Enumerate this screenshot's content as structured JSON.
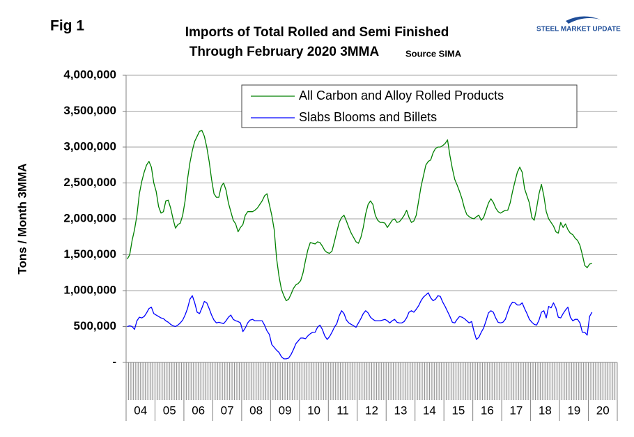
{
  "figure_label": "Fig 1",
  "logo": "STEEL MARKET UPDATE",
  "chart_data": {
    "type": "line",
    "title": [
      "Imports of Total Rolled and Semi Finished",
      "Through February 2020 3MMA"
    ],
    "source": "Source SIMA",
    "y_label": "Tons / Month 3MMA",
    "year_labels": [
      "04",
      "05",
      "06",
      "07",
      "08",
      "09",
      "10",
      "11",
      "12",
      "13",
      "14",
      "15",
      "16",
      "17",
      "18",
      "19",
      "20"
    ],
    "ylim": [
      0,
      4000000
    ],
    "yticks": [
      {
        "value": 0,
        "label": "-"
      },
      {
        "value": 500000,
        "label": "500,000"
      },
      {
        "value": 1000000,
        "label": "1,000,000"
      },
      {
        "value": 1500000,
        "label": "1,500,000"
      },
      {
        "value": 2000000,
        "label": "2,000,000"
      },
      {
        "value": 2500000,
        "label": "2,500,000"
      },
      {
        "value": 3000000,
        "label": "3,000,000"
      },
      {
        "value": 3500000,
        "label": "3,500,000"
      },
      {
        "value": 4000000,
        "label": "4,000,000"
      }
    ],
    "grid": true,
    "series": [
      {
        "name": "All Carbon and Alloy Rolled Products",
        "color": "#008000",
        "values": [
          1440000,
          1500000,
          1700000,
          1850000,
          2050000,
          2350000,
          2520000,
          2650000,
          2750000,
          2800000,
          2720000,
          2500000,
          2380000,
          2170000,
          2080000,
          2100000,
          2250000,
          2260000,
          2150000,
          2000000,
          1870000,
          1920000,
          1940000,
          2050000,
          2250000,
          2550000,
          2780000,
          2950000,
          3080000,
          3150000,
          3220000,
          3230000,
          3150000,
          3000000,
          2800000,
          2550000,
          2350000,
          2300000,
          2300000,
          2450000,
          2500000,
          2400000,
          2220000,
          2100000,
          1980000,
          1930000,
          1820000,
          1880000,
          1920000,
          2050000,
          2100000,
          2100000,
          2100000,
          2120000,
          2150000,
          2200000,
          2250000,
          2320000,
          2350000,
          2200000,
          2050000,
          1850000,
          1450000,
          1200000,
          1020000,
          930000,
          860000,
          880000,
          950000,
          1030000,
          1080000,
          1100000,
          1140000,
          1250000,
          1420000,
          1570000,
          1670000,
          1660000,
          1650000,
          1680000,
          1670000,
          1620000,
          1560000,
          1530000,
          1520000,
          1550000,
          1680000,
          1820000,
          1950000,
          2020000,
          2050000,
          1970000,
          1880000,
          1800000,
          1740000,
          1680000,
          1660000,
          1740000,
          1880000,
          2070000,
          2200000,
          2250000,
          2200000,
          2050000,
          1980000,
          1950000,
          1950000,
          1940000,
          1880000,
          1930000,
          1980000,
          2000000,
          1950000,
          1960000,
          2000000,
          2050000,
          2120000,
          2020000,
          1950000,
          1970000,
          2050000,
          2250000,
          2450000,
          2600000,
          2750000,
          2800000,
          2820000,
          2920000,
          2980000,
          3000000,
          3000000,
          3020000,
          3050000,
          3100000,
          2880000,
          2700000,
          2550000,
          2470000,
          2380000,
          2280000,
          2150000,
          2060000,
          2030000,
          2010000,
          2000000,
          2030000,
          2050000,
          1980000,
          2020000,
          2120000,
          2220000,
          2280000,
          2230000,
          2150000,
          2100000,
          2080000,
          2100000,
          2120000,
          2120000,
          2220000,
          2380000,
          2520000,
          2650000,
          2720000,
          2650000,
          2420000,
          2320000,
          2220000,
          2020000,
          1980000,
          2150000,
          2350000,
          2480000,
          2320000,
          2100000,
          2000000,
          1950000,
          1900000,
          1820000,
          1800000,
          1950000,
          1880000,
          1930000,
          1850000,
          1800000,
          1780000,
          1730000,
          1700000,
          1630000,
          1500000,
          1350000,
          1320000,
          1370000,
          1380000
        ]
      },
      {
        "name": "Slabs Blooms and Billets",
        "color": "#0000ff",
        "values": [
          500000,
          510000,
          500000,
          460000,
          580000,
          630000,
          620000,
          640000,
          690000,
          750000,
          770000,
          680000,
          660000,
          640000,
          620000,
          610000,
          580000,
          560000,
          530000,
          510000,
          500000,
          520000,
          550000,
          590000,
          660000,
          750000,
          880000,
          930000,
          830000,
          700000,
          680000,
          760000,
          850000,
          830000,
          750000,
          660000,
          590000,
          550000,
          560000,
          550000,
          540000,
          580000,
          630000,
          660000,
          600000,
          580000,
          570000,
          550000,
          430000,
          480000,
          550000,
          590000,
          600000,
          580000,
          580000,
          580000,
          580000,
          520000,
          440000,
          390000,
          250000,
          210000,
          170000,
          140000,
          80000,
          50000,
          50000,
          60000,
          110000,
          180000,
          260000,
          300000,
          340000,
          340000,
          330000,
          370000,
          400000,
          420000,
          420000,
          490000,
          520000,
          460000,
          370000,
          320000,
          360000,
          420000,
          490000,
          540000,
          650000,
          720000,
          680000,
          590000,
          550000,
          530000,
          510000,
          490000,
          550000,
          610000,
          680000,
          720000,
          690000,
          630000,
          600000,
          580000,
          580000,
          580000,
          590000,
          600000,
          580000,
          550000,
          580000,
          600000,
          560000,
          550000,
          550000,
          570000,
          620000,
          700000,
          720000,
          700000,
          740000,
          790000,
          860000,
          910000,
          940000,
          970000,
          900000,
          860000,
          880000,
          930000,
          920000,
          840000,
          780000,
          710000,
          640000,
          560000,
          550000,
          600000,
          640000,
          630000,
          610000,
          580000,
          550000,
          570000,
          430000,
          320000,
          350000,
          420000,
          480000,
          580000,
          690000,
          720000,
          700000,
          620000,
          560000,
          550000,
          560000,
          600000,
          700000,
          790000,
          840000,
          830000,
          800000,
          800000,
          830000,
          750000,
          680000,
          600000,
          560000,
          530000,
          520000,
          590000,
          700000,
          720000,
          620000,
          780000,
          760000,
          830000,
          760000,
          630000,
          620000,
          680000,
          730000,
          770000,
          630000,
          580000,
          600000,
          600000,
          550000,
          420000,
          420000,
          380000,
          640000,
          700000
        ]
      }
    ]
  }
}
